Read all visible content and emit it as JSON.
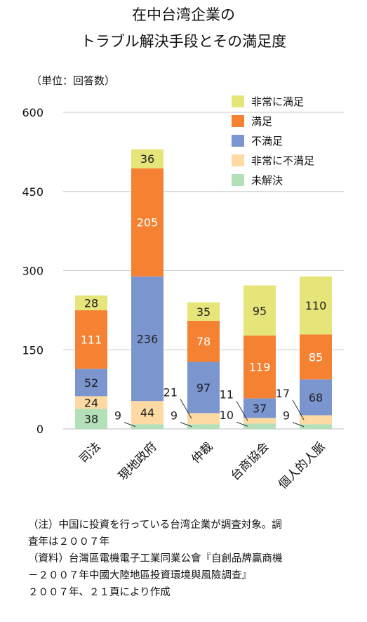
{
  "title_lines": [
    "在中台湾企業の",
    "トラブル解決手段とその満足度"
  ],
  "unit_label": "（単位：回答数）",
  "chart_data": {
    "type": "bar",
    "stacked": true,
    "categories": [
      "司法",
      "現地政府",
      "仲裁",
      "台商協会",
      "個人的人脈"
    ],
    "series": [
      {
        "name": "未解決",
        "color": "#b3e0b8",
        "values": [
          38,
          9,
          9,
          10,
          9
        ]
      },
      {
        "name": "非常に不満足",
        "color": "#fdd9a3",
        "values": [
          24,
          44,
          21,
          11,
          17
        ]
      },
      {
        "name": "不満足",
        "color": "#7b96cf",
        "values": [
          52,
          236,
          97,
          37,
          68
        ]
      },
      {
        "name": "満足",
        "color": "#f58233",
        "values": [
          111,
          205,
          78,
          119,
          85
        ]
      },
      {
        "name": "非常に満足",
        "color": "#e6e57a",
        "values": [
          28,
          36,
          35,
          95,
          110
        ]
      }
    ],
    "legend_order": [
      "非常に満足",
      "満足",
      "不満足",
      "非常に不満足",
      "未解決"
    ],
    "ylim": [
      0,
      600
    ],
    "yticks": [
      0,
      150,
      300,
      450,
      600
    ],
    "grid": true,
    "legend_position": "top-right"
  },
  "notes": [
    "（注）中国に投資を行っている台湾企業が調査対象。調",
    "査年は２００７年",
    "（資料）台灣區電機電子工業同業公會『自創品牌贏商機",
    "－２００７年中國大陸地區投資環境與風險調查』",
    "２００７年、２１頁により作成"
  ]
}
